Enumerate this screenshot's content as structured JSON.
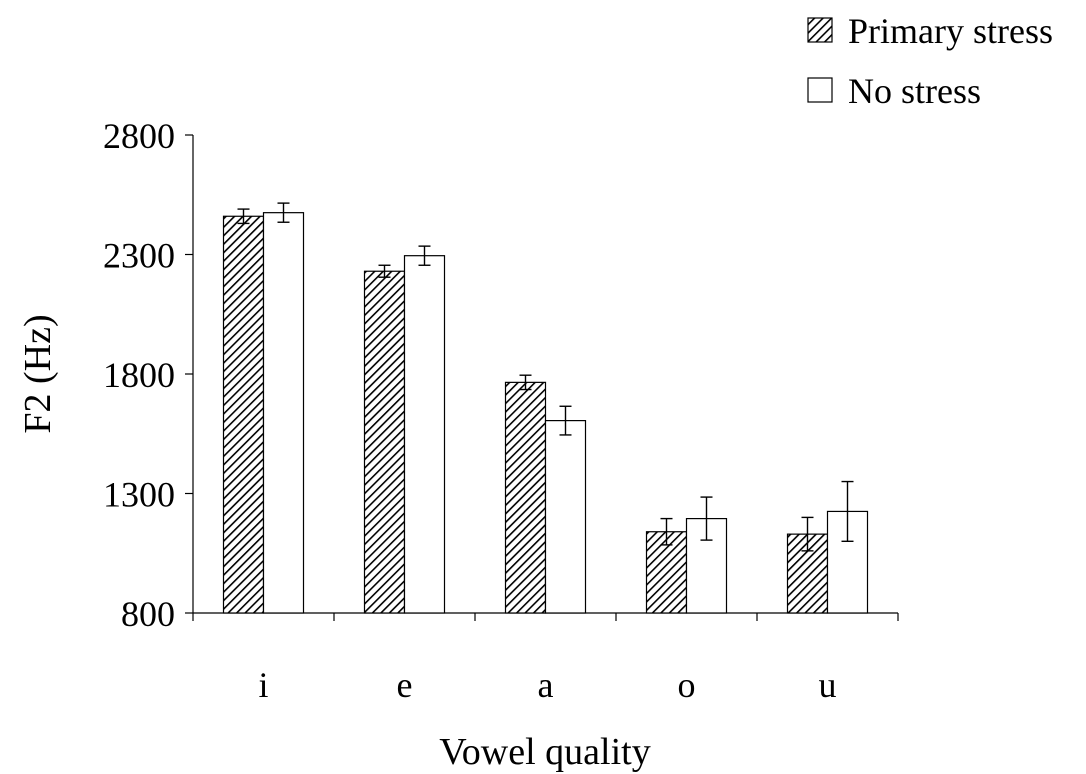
{
  "chart_data": {
    "type": "bar",
    "title": "",
    "xlabel": "Vowel quality",
    "ylabel": "F2 (Hz)",
    "categories": [
      "i",
      "e",
      "a",
      "o",
      "u"
    ],
    "ylim": [
      800,
      2800
    ],
    "yticks": [
      800,
      1300,
      1800,
      2300,
      2800
    ],
    "grid": false,
    "legend_position": "top-right",
    "series": [
      {
        "name": "Primary stress",
        "pattern": "diagonal-hatch",
        "color": "#000000",
        "values": [
          2460,
          2230,
          1765,
          1140,
          1130
        ],
        "error": [
          30,
          25,
          30,
          55,
          70
        ]
      },
      {
        "name": "No stress",
        "pattern": "solid",
        "color": "#ffffff",
        "values": [
          2475,
          2295,
          1605,
          1195,
          1225
        ],
        "error": [
          40,
          40,
          60,
          90,
          125
        ]
      }
    ]
  }
}
